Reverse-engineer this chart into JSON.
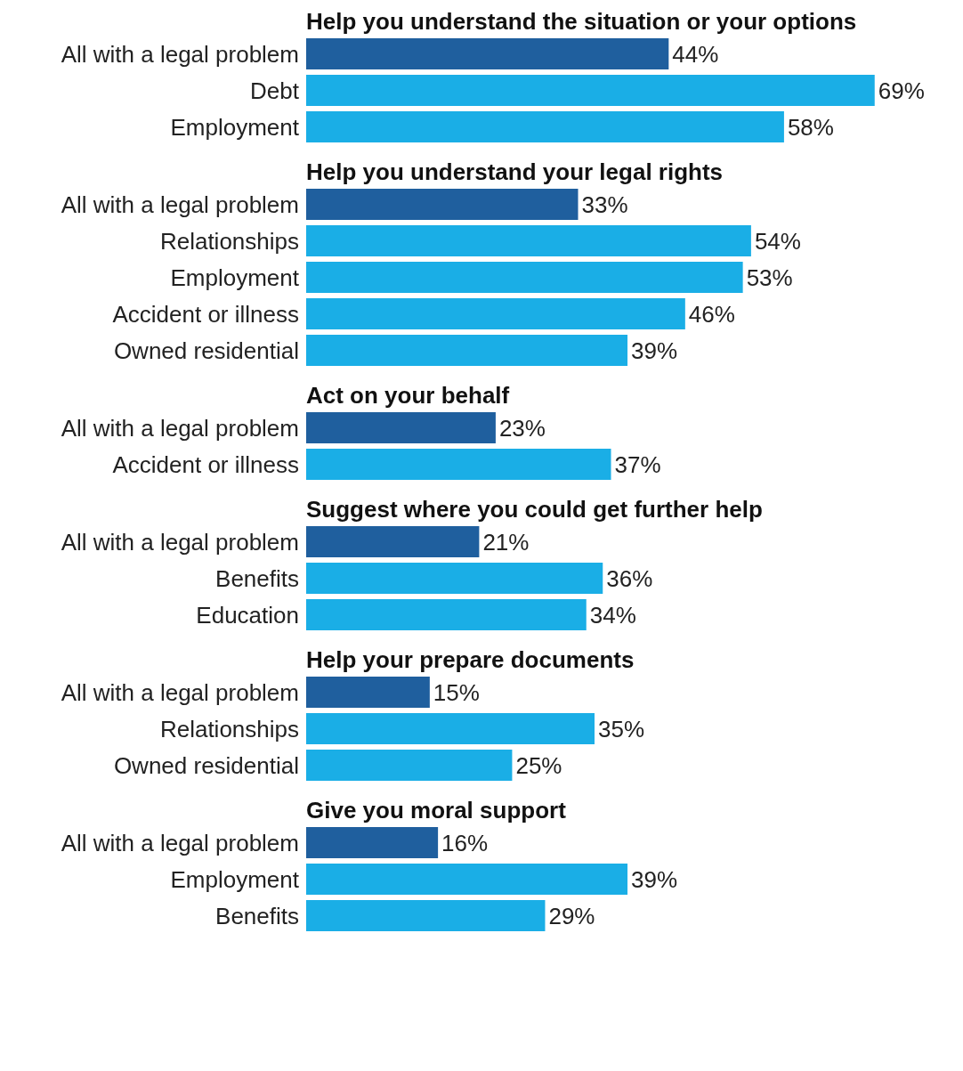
{
  "chart_data": [
    {
      "type": "bar",
      "orientation": "horizontal",
      "title": "Help you understand the situation or your options",
      "categories": [
        "All with a legal problem",
        "Debt",
        "Employment"
      ],
      "values": [
        44,
        69,
        58
      ],
      "colors": [
        "#1f5f9e",
        "#1aaee6",
        "#1aaee6"
      ],
      "value_labels": [
        "44%",
        "69%",
        "58%"
      ]
    },
    {
      "type": "bar",
      "orientation": "horizontal",
      "title": "Help you understand your legal rights",
      "categories": [
        "All with a legal problem",
        "Relationships",
        "Employment",
        "Accident or illness",
        "Owned residential"
      ],
      "values": [
        33,
        54,
        53,
        46,
        39
      ],
      "colors": [
        "#1f5f9e",
        "#1aaee6",
        "#1aaee6",
        "#1aaee6",
        "#1aaee6"
      ],
      "value_labels": [
        "33%",
        "54%",
        "53%",
        "46%",
        "39%"
      ]
    },
    {
      "type": "bar",
      "orientation": "horizontal",
      "title": "Act on your behalf",
      "categories": [
        "All with a legal problem",
        "Accident or illness"
      ],
      "values": [
        23,
        37
      ],
      "colors": [
        "#1f5f9e",
        "#1aaee6"
      ],
      "value_labels": [
        "23%",
        "37%"
      ]
    },
    {
      "type": "bar",
      "orientation": "horizontal",
      "title": "Suggest where you could get further help",
      "categories": [
        "All with a legal problem",
        "Benefits",
        "Education"
      ],
      "values": [
        21,
        36,
        34
      ],
      "colors": [
        "#1f5f9e",
        "#1aaee6",
        "#1aaee6"
      ],
      "value_labels": [
        "21%",
        "36%",
        "34%"
      ]
    },
    {
      "type": "bar",
      "orientation": "horizontal",
      "title": "Help your prepare documents",
      "categories": [
        "All with a legal problem",
        "Relationships",
        "Owned residential"
      ],
      "values": [
        15,
        35,
        25
      ],
      "colors": [
        "#1f5f9e",
        "#1aaee6",
        "#1aaee6"
      ],
      "value_labels": [
        "15%",
        "35%",
        "25%"
      ]
    },
    {
      "type": "bar",
      "orientation": "horizontal",
      "title": "Give you moral support",
      "categories": [
        "All with a legal problem",
        "Employment",
        "Benefits"
      ],
      "values": [
        16,
        39,
        29
      ],
      "colors": [
        "#1f5f9e",
        "#1aaee6",
        "#1aaee6"
      ],
      "value_labels": [
        "16%",
        "39%",
        "29%"
      ]
    }
  ]
}
